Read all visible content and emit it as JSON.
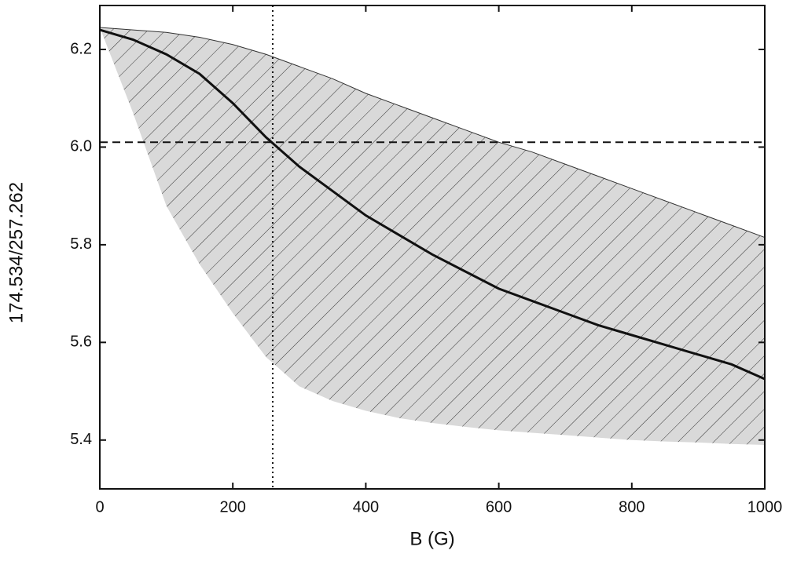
{
  "chart_data": {
    "type": "line",
    "x_label": "B (G)",
    "y_label": "174.534/257.262",
    "x": [
      0,
      50,
      100,
      150,
      200,
      250,
      300,
      350,
      400,
      450,
      500,
      550,
      600,
      650,
      700,
      750,
      800,
      850,
      900,
      950,
      1000
    ],
    "series": [
      {
        "color": "#111111",
        "values": [
          6.24,
          6.22,
          6.19,
          6.15,
          6.09,
          6.02,
          5.96,
          5.91,
          5.86,
          5.82,
          5.78,
          5.745,
          5.71,
          5.685,
          5.66,
          5.635,
          5.615,
          5.595,
          5.575,
          5.555,
          5.525
        ]
      }
    ],
    "band": {
      "color": "#d9d9d9",
      "upper": [
        6.245,
        6.24,
        6.235,
        6.225,
        6.21,
        6.19,
        6.165,
        6.14,
        6.11,
        6.085,
        6.06,
        6.035,
        6.01,
        5.99,
        5.965,
        5.94,
        5.915,
        5.89,
        5.865,
        5.84,
        5.815
      ],
      "lower": [
        6.245,
        6.07,
        5.88,
        5.76,
        5.66,
        5.57,
        5.51,
        5.48,
        5.46,
        5.445,
        5.435,
        5.427,
        5.42,
        5.415,
        5.41,
        5.405,
        5.4,
        5.397,
        5.395,
        5.392,
        5.39
      ]
    },
    "hline": 6.01,
    "vline": 260,
    "xlim": [
      0,
      1000
    ],
    "ylim": [
      5.3,
      6.29
    ],
    "xticks": [
      0,
      200,
      400,
      600,
      800,
      1000
    ],
    "yticks": [
      5.4,
      5.6,
      5.8,
      {
        "value": 6,
        "label": "6.0"
      },
      6.2
    ]
  }
}
